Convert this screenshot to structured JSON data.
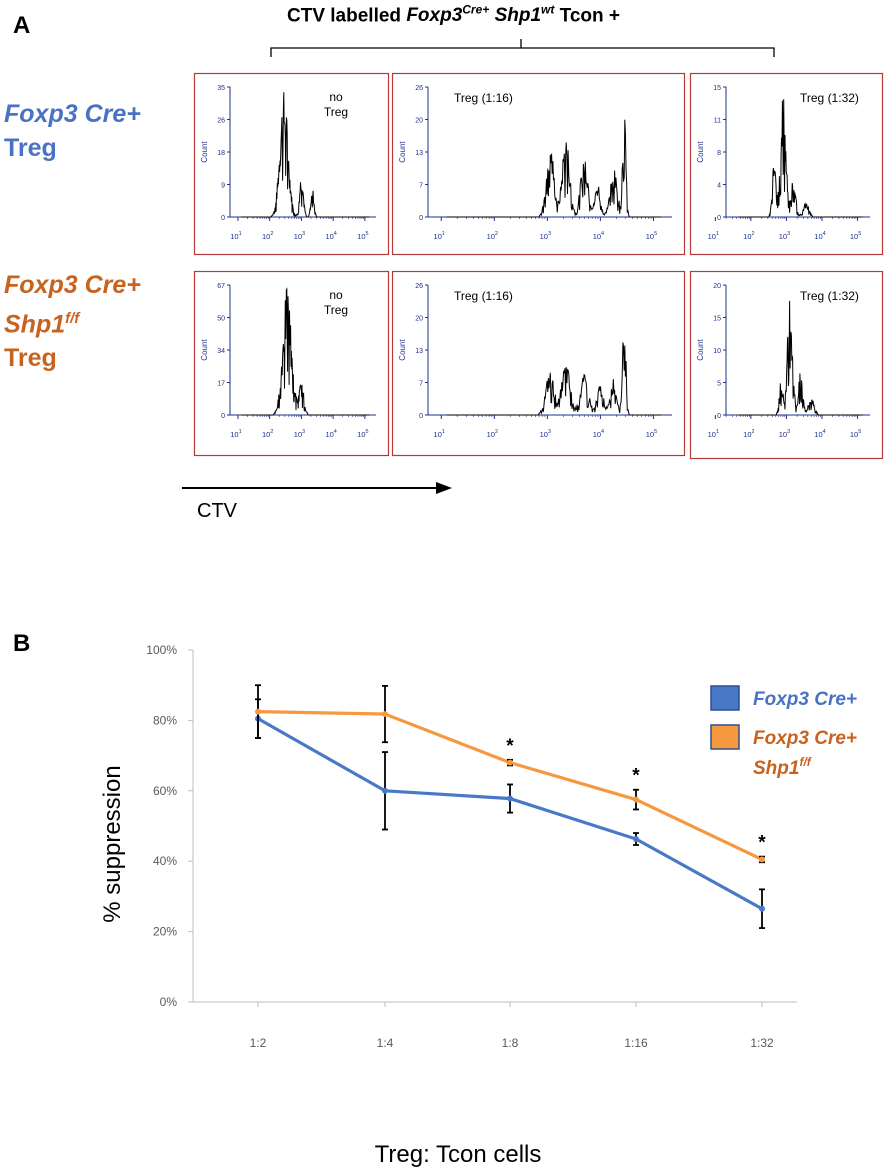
{
  "panel_a": {
    "letter": "A",
    "header": {
      "prefix": "CTV labelled ",
      "gene1": "Foxp3",
      "sup1": "Cre+",
      "gene2": " Shp1",
      "sup2": "wt",
      "suffix": " Tcon  +"
    },
    "row1_label": {
      "line1": "Foxp3 Cre+",
      "line2": "Treg"
    },
    "row2_label": {
      "line1": "Foxp3 Cre+",
      "line2": "Shp1",
      "line2_sup": "f/f",
      "line3": "Treg"
    },
    "axis_arrow_label": "CTV",
    "y_axis_title": "Count",
    "x_tick_labels": [
      {
        "base": "10",
        "exp": "1"
      },
      {
        "base": "10",
        "exp": "2"
      },
      {
        "base": "10",
        "exp": "3"
      },
      {
        "base": "10",
        "exp": "4"
      },
      {
        "base": "10",
        "exp": "5"
      }
    ],
    "histograms": [
      {
        "title_lines": [
          "no",
          "Treg"
        ],
        "y_ticks": [
          "0",
          "9",
          "18",
          "26",
          "35"
        ]
      },
      {
        "title_lines": [
          "Treg (1:16)"
        ],
        "y_ticks": [
          "0",
          "7",
          "13",
          "20",
          "26"
        ]
      },
      {
        "title_lines": [
          "Treg (1:32)"
        ],
        "y_ticks": [
          "0",
          "4",
          "8",
          "11",
          "15"
        ]
      },
      {
        "title_lines": [
          "no",
          "Treg"
        ],
        "y_ticks": [
          "0",
          "17",
          "34",
          "50",
          "67"
        ]
      },
      {
        "title_lines": [
          "Treg (1:16)"
        ],
        "y_ticks": [
          "0",
          "7",
          "13",
          "20",
          "26"
        ]
      },
      {
        "title_lines": [
          "Treg (1:32)"
        ],
        "y_ticks": [
          "0",
          "5",
          "10",
          "15",
          "20"
        ]
      }
    ]
  },
  "panel_b": {
    "letter": "B"
  },
  "chart_data": {
    "type": "line",
    "categories": [
      "1:2",
      "1:4",
      "1:8",
      "1:16",
      "1:32"
    ],
    "series": [
      {
        "name": "Foxp3 Cre+",
        "name_sup": "",
        "color": "#4a78c8",
        "label_color": "#4a72c4",
        "values": [
          80.5,
          60.0,
          57.8,
          46.3,
          26.5
        ],
        "errors": [
          5.5,
          11.0,
          4.0,
          1.7,
          5.5
        ]
      },
      {
        "name": "Foxp3 Cre+ Shp1",
        "name_sup": "f/f",
        "color": "#f5983e",
        "label_color": "#c8621f",
        "values": [
          82.5,
          81.8,
          68.0,
          57.5,
          40.5
        ],
        "errors": [
          7.5,
          8.0,
          0.8,
          2.8,
          0.8
        ]
      }
    ],
    "significance": [
      "",
      "",
      "*",
      "*",
      "*"
    ],
    "ylim": [
      0,
      100
    ],
    "y_ticks": [
      "0%",
      "20%",
      "40%",
      "60%",
      "80%",
      "100%"
    ],
    "xlabel": "Treg: Tcon cells",
    "ylabel": "% suppression",
    "legend_position": "top-right"
  }
}
